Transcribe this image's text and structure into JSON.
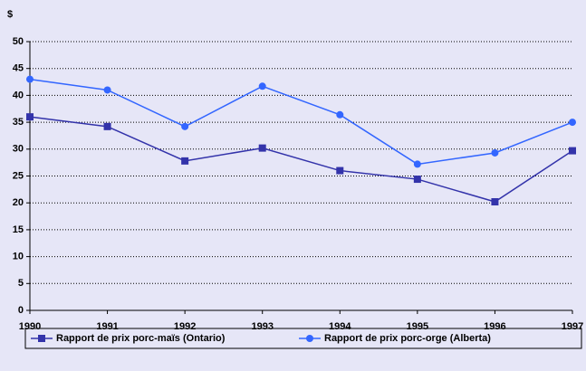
{
  "chart_data": {
    "type": "line",
    "y_label": "$",
    "x": [
      1990,
      1991,
      1992,
      1993,
      1994,
      1995,
      1996,
      1997
    ],
    "series": [
      {
        "name": "Rapport de prix porc-maïs (Ontario)",
        "color": "#3333aa",
        "marker": "square",
        "values": [
          36,
          34.2,
          27.8,
          30.2,
          26,
          24.4,
          20.2,
          29.7
        ]
      },
      {
        "name": "Rapport de prix porc-orge (Alberta)",
        "color": "#3366ff",
        "marker": "circle",
        "values": [
          43,
          41,
          34.2,
          41.7,
          36.4,
          27.2,
          29.3,
          35
        ]
      }
    ],
    "xlim": [
      1990,
      1997
    ],
    "xticks": [
      1990,
      1991,
      1992,
      1993,
      1994,
      1995,
      1996,
      1997
    ],
    "ylim": [
      0,
      50
    ],
    "yticks": [
      0,
      5,
      10,
      15,
      20,
      25,
      30,
      35,
      40,
      45,
      50
    ],
    "grid": true,
    "legend": "bottom"
  }
}
